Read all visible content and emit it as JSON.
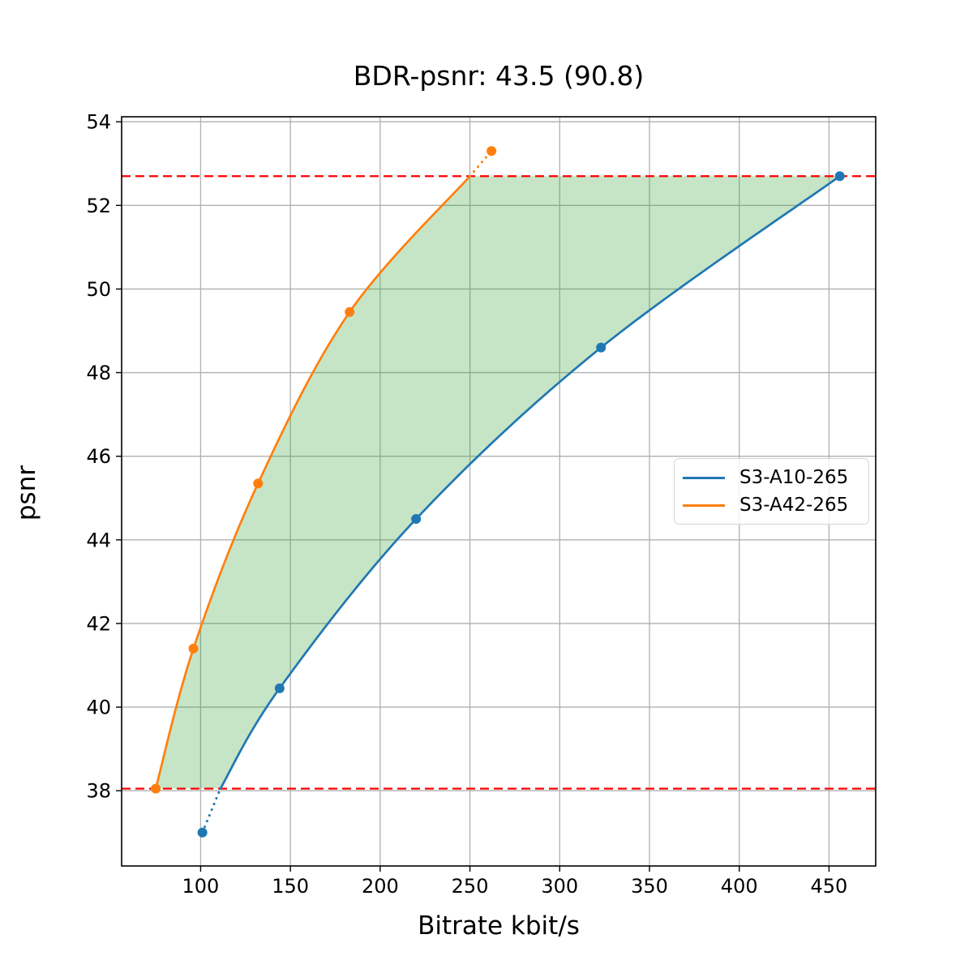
{
  "figure": {
    "title": "BDR-psnr: 43.5 (90.8)",
    "xlabel": "Bitrate kbit/s",
    "ylabel": "psnr",
    "background": "#ffffff"
  },
  "legend": {
    "position": "center right",
    "items": [
      {
        "label": "S3-A10-265",
        "color": "#1f77b4"
      },
      {
        "label": "S3-A42-265",
        "color": "#ff7f0e"
      }
    ]
  },
  "chart_data": {
    "type": "line",
    "title": "BDR-psnr: 43.5 (90.8)",
    "xlabel": "Bitrate kbit/s",
    "ylabel": "psnr",
    "xlim": [
      56,
      476
    ],
    "ylim": [
      36.2,
      54.12
    ],
    "x_ticks": [
      100,
      150,
      200,
      250,
      300,
      350,
      400,
      450
    ],
    "y_ticks": [
      38,
      40,
      42,
      44,
      46,
      48,
      50,
      52,
      54
    ],
    "grid": true,
    "grid_color": "#b0b0b0",
    "series": [
      {
        "name": "S3-A10-265",
        "color": "#1f77b4",
        "points": [
          [
            101,
            37.0
          ],
          [
            144,
            40.45
          ],
          [
            220,
            44.5
          ],
          [
            323,
            48.6
          ],
          [
            456,
            52.7
          ]
        ],
        "solid_segment": [
          [
            111,
            38.05
          ],
          [
            144,
            40.45
          ],
          [
            220,
            44.5
          ],
          [
            323,
            48.6
          ],
          [
            456,
            52.7
          ]
        ],
        "dotted_segment": [
          [
            101,
            37.0
          ],
          [
            111,
            38.05
          ]
        ]
      },
      {
        "name": "S3-A42-265",
        "color": "#ff7f0e",
        "points": [
          [
            75,
            38.05
          ],
          [
            96,
            41.4
          ],
          [
            132,
            45.35
          ],
          [
            183,
            49.45
          ],
          [
            262,
            53.3
          ]
        ],
        "solid_segment": [
          [
            75,
            38.05
          ],
          [
            96,
            41.4
          ],
          [
            132,
            45.35
          ],
          [
            183,
            49.45
          ],
          [
            250,
            52.7
          ]
        ],
        "dotted_segment": [
          [
            250,
            52.7
          ],
          [
            262,
            53.3
          ]
        ]
      }
    ],
    "hlines": [
      {
        "y": 38.05,
        "color": "#ff0000",
        "style": "dashed"
      },
      {
        "y": 52.7,
        "color": "#ff0000",
        "style": "dashed"
      }
    ],
    "shaded_region": {
      "between": [
        "S3-A42-265",
        "S3-A10-265"
      ],
      "color": "#2ca02c",
      "opacity": 0.27
    }
  }
}
